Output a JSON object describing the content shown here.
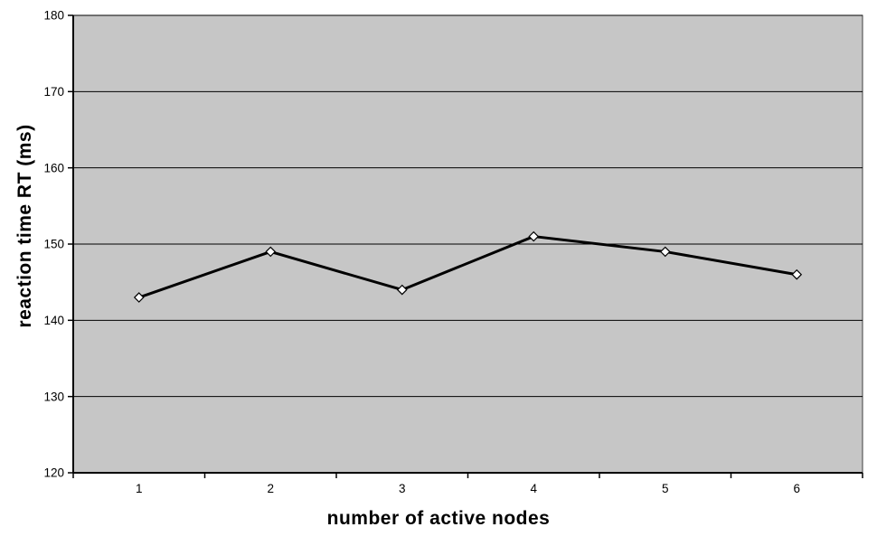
{
  "chart_data": {
    "type": "line",
    "x": [
      1,
      2,
      3,
      4,
      5,
      6
    ],
    "xtick_labels": [
      "1",
      "2",
      "3",
      "4",
      "5",
      "6"
    ],
    "series": [
      {
        "name": "reaction time",
        "values": [
          143,
          149,
          144,
          151,
          149,
          146
        ]
      }
    ],
    "title": "",
    "xlabel": "number of active nodes",
    "ylabel": "reaction time RT (ms)",
    "ylim": [
      120,
      180
    ],
    "yticks": [
      120,
      130,
      140,
      150,
      160,
      170,
      180
    ],
    "grid": true,
    "legend": false,
    "marker": "diamond",
    "colors": {
      "plot_background": "#c6c6c6",
      "plot_border": "#3f3f3f",
      "gridline": "#000000",
      "axis": "#000000",
      "line": "#000000",
      "marker_fill": "#ffffff",
      "marker_stroke": "#000000",
      "text": "#000000",
      "page_background": "#ffffff"
    }
  }
}
